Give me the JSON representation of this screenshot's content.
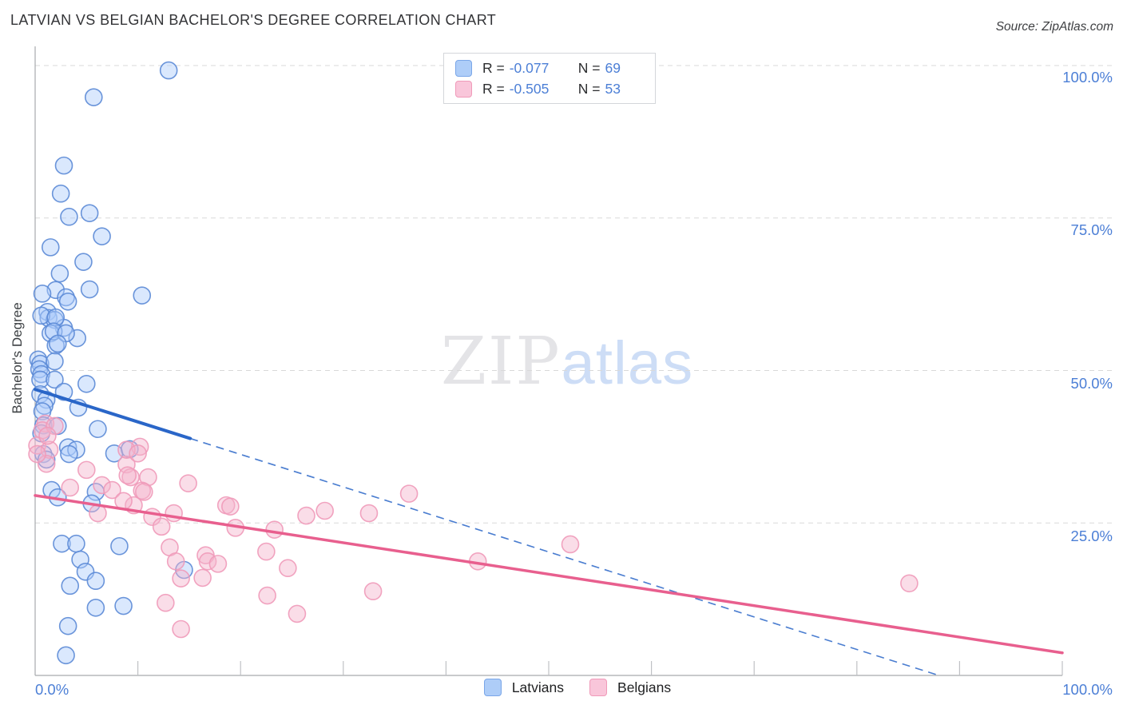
{
  "header": {
    "title": "LATVIAN VS BELGIAN BACHELOR'S DEGREE CORRELATION CHART",
    "source": "Source: ZipAtlas.com"
  },
  "watermark": {
    "zip": "ZIP",
    "atlas": "atlas"
  },
  "axes": {
    "y_label": "Bachelor's Degree",
    "y_ticks": [
      {
        "label": "100.0%",
        "pct": 100
      },
      {
        "label": "75.0%",
        "pct": 75
      },
      {
        "label": "50.0%",
        "pct": 50
      },
      {
        "label": "25.0%",
        "pct": 25
      }
    ],
    "x_left_label": "0.0%",
    "x_right_label": "100.0%"
  },
  "legend_box": {
    "rows": [
      {
        "series": "Latvians",
        "r_label": "R =",
        "r_value": "-0.077",
        "n_label": "N =",
        "n_value": "69"
      },
      {
        "series": "Belgians",
        "r_label": "R =",
        "r_value": "-0.505",
        "n_label": "N =",
        "n_value": "53"
      }
    ]
  },
  "bottom_legend": {
    "items": [
      {
        "label": "Latvians",
        "color_key": "latvian"
      },
      {
        "label": "Belgians",
        "color_key": "belgian"
      }
    ]
  },
  "colors": {
    "accent_blue_text": "#4c7fd6",
    "grid": "#d9d9d9",
    "axis": "#a8aaad",
    "tick": "#bfc1c4",
    "latvian_fill": "#aecbfa",
    "latvian_stroke": "#5b8ad6",
    "latvian_line": "#2a66c8",
    "belgian_fill": "#f5b4cd",
    "belgian_stroke": "#ef9ab9",
    "belgian_line": "#e85f8e"
  },
  "chart_data": {
    "type": "scatter",
    "title": "LATVIAN VS BELGIAN BACHELOR'S DEGREE CORRELATION CHART",
    "xlabel": "",
    "ylabel": "Bachelor's Degree",
    "xlim": [
      0,
      100
    ],
    "ylim": [
      0,
      100
    ],
    "x_tick_step_pct": 10,
    "y_gridlines_pct": [
      25,
      50,
      75,
      100
    ],
    "legend_position": "bottom-center",
    "series": [
      {
        "name": "Latvians",
        "R": -0.077,
        "N": 69,
        "fill_key": "latvian_fill",
        "stroke_key": "latvian_stroke",
        "points": [
          [
            13.0,
            99.2
          ],
          [
            5.7,
            94.8
          ],
          [
            2.8,
            83.6
          ],
          [
            2.5,
            79.0
          ],
          [
            3.3,
            75.2
          ],
          [
            5.3,
            75.8
          ],
          [
            6.5,
            72.0
          ],
          [
            1.5,
            70.2
          ],
          [
            4.7,
            67.8
          ],
          [
            2.4,
            65.9
          ],
          [
            2.0,
            63.2
          ],
          [
            0.7,
            62.6
          ],
          [
            3.0,
            62.0
          ],
          [
            3.2,
            61.3
          ],
          [
            5.3,
            63.3
          ],
          [
            10.4,
            62.3
          ],
          [
            1.2,
            59.6
          ],
          [
            1.3,
            58.6
          ],
          [
            1.9,
            58.3
          ],
          [
            2.8,
            57.0
          ],
          [
            1.5,
            56.1
          ],
          [
            4.1,
            55.3
          ],
          [
            2.0,
            54.1
          ],
          [
            0.6,
            59.0
          ],
          [
            2.0,
            58.7
          ],
          [
            1.8,
            56.4
          ],
          [
            3.0,
            56.1
          ],
          [
            2.2,
            54.4
          ],
          [
            0.3,
            51.8
          ],
          [
            0.5,
            51.1
          ],
          [
            0.4,
            50.2
          ],
          [
            0.6,
            49.4
          ],
          [
            1.9,
            51.5
          ],
          [
            0.5,
            48.5
          ],
          [
            1.9,
            48.5
          ],
          [
            5.0,
            47.8
          ],
          [
            2.8,
            46.5
          ],
          [
            0.5,
            46.1
          ],
          [
            1.1,
            45.2
          ],
          [
            0.9,
            44.2
          ],
          [
            4.2,
            43.9
          ],
          [
            0.7,
            43.3
          ],
          [
            0.8,
            41.0
          ],
          [
            2.2,
            40.9
          ],
          [
            0.6,
            39.7
          ],
          [
            6.1,
            40.4
          ],
          [
            3.2,
            37.4
          ],
          [
            4.0,
            37.0
          ],
          [
            7.7,
            36.4
          ],
          [
            9.2,
            37.1
          ],
          [
            0.8,
            36.3
          ],
          [
            3.3,
            36.3
          ],
          [
            1.1,
            35.4
          ],
          [
            1.6,
            30.4
          ],
          [
            2.2,
            29.2
          ],
          [
            5.9,
            30.1
          ],
          [
            5.5,
            28.2
          ],
          [
            2.6,
            21.6
          ],
          [
            4.0,
            21.6
          ],
          [
            8.2,
            21.2
          ],
          [
            4.4,
            19.0
          ],
          [
            4.9,
            17.0
          ],
          [
            5.9,
            15.5
          ],
          [
            3.4,
            14.7
          ],
          [
            5.9,
            11.1
          ],
          [
            8.6,
            11.4
          ],
          [
            3.2,
            8.1
          ],
          [
            3.0,
            3.3
          ],
          [
            14.5,
            17.3
          ]
        ]
      },
      {
        "name": "Belgians",
        "R": -0.505,
        "N": 53,
        "fill_key": "belgian_fill",
        "stroke_key": "belgian_stroke",
        "points": [
          [
            1.0,
            41.3
          ],
          [
            0.7,
            40.2
          ],
          [
            0.2,
            37.7
          ],
          [
            1.4,
            37.0
          ],
          [
            1.9,
            40.9
          ],
          [
            10.2,
            37.5
          ],
          [
            8.9,
            34.6
          ],
          [
            9.3,
            32.5
          ],
          [
            11.0,
            32.5
          ],
          [
            10.4,
            30.3
          ],
          [
            14.9,
            31.5
          ],
          [
            9.6,
            27.9
          ],
          [
            11.4,
            26.0
          ],
          [
            13.5,
            26.6
          ],
          [
            12.3,
            24.4
          ],
          [
            18.6,
            27.9
          ],
          [
            19.0,
            27.7
          ],
          [
            19.5,
            24.2
          ],
          [
            23.3,
            23.9
          ],
          [
            26.4,
            26.2
          ],
          [
            28.2,
            27.0
          ],
          [
            32.5,
            26.6
          ],
          [
            36.4,
            29.8
          ],
          [
            13.1,
            21.0
          ],
          [
            16.6,
            19.7
          ],
          [
            16.8,
            18.7
          ],
          [
            17.8,
            18.3
          ],
          [
            14.2,
            15.9
          ],
          [
            22.5,
            20.3
          ],
          [
            24.6,
            17.6
          ],
          [
            22.6,
            13.1
          ],
          [
            12.7,
            11.9
          ],
          [
            14.2,
            7.6
          ],
          [
            25.5,
            10.1
          ],
          [
            32.9,
            13.8
          ],
          [
            43.1,
            18.7
          ],
          [
            52.1,
            21.5
          ],
          [
            85.1,
            15.1
          ],
          [
            5.0,
            33.7
          ],
          [
            3.4,
            30.8
          ],
          [
            6.5,
            31.2
          ],
          [
            7.5,
            30.4
          ],
          [
            8.6,
            28.6
          ],
          [
            8.9,
            37.0
          ],
          [
            10.0,
            36.4
          ],
          [
            1.1,
            34.7
          ],
          [
            9.0,
            32.8
          ],
          [
            10.6,
            30.1
          ],
          [
            6.1,
            26.6
          ],
          [
            13.7,
            18.7
          ],
          [
            16.3,
            16.0
          ],
          [
            1.2,
            39.3
          ],
          [
            0.2,
            36.3
          ]
        ]
      }
    ],
    "trendlines": [
      {
        "series": "Latvians",
        "x1": 0,
        "y1": 46.9,
        "x2": 88,
        "y2": 0,
        "solid_until_x": 15.1,
        "color_key": "latvian_line",
        "solid_width": 4,
        "dash_width": 1.6
      },
      {
        "series": "Belgians",
        "x1": 0,
        "y1": 29.5,
        "x2": 100,
        "y2": 3.7,
        "solid_until_x": 100,
        "color_key": "belgian_line",
        "solid_width": 3.5,
        "dash_width": 1.6
      }
    ]
  }
}
